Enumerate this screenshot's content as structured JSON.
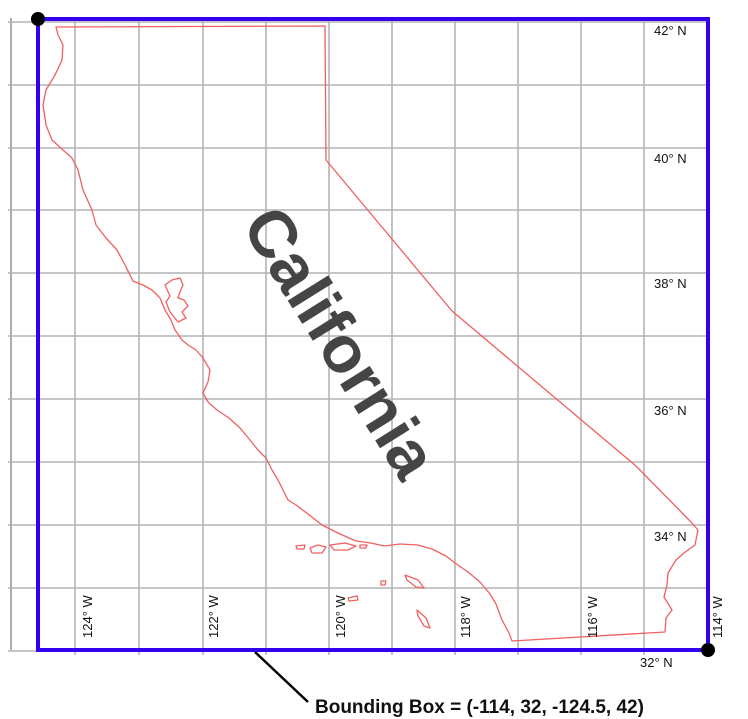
{
  "map": {
    "state_label": "California",
    "bounding_box": {
      "caption": "Bounding Box = (-114, 32, -124.5, 42)",
      "lon_min": -124.5,
      "lon_max": -114,
      "lat_min": 32,
      "lat_max": 42,
      "color": "#3300ee"
    },
    "outline_color": "#f06060",
    "grid": {
      "lon_lines": [
        -125,
        -124,
        -123,
        -122,
        -121,
        -120,
        -119,
        -118,
        -117,
        -116,
        -115,
        -114
      ],
      "lat_lines": [
        32,
        33,
        34,
        35,
        36,
        37,
        38,
        39,
        40,
        41,
        42
      ]
    },
    "lon_labels": [
      "124° W",
      "122° W",
      "120° W",
      "118° W",
      "116° W",
      "114° W"
    ],
    "lat_labels": [
      "42° N",
      "40° N",
      "38° N",
      "36° N",
      "34° N",
      "32° N"
    ]
  }
}
